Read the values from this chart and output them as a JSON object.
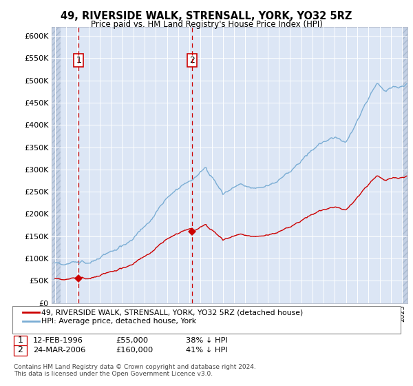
{
  "title": "49, RIVERSIDE WALK, STRENSALL, YORK, YO32 5RZ",
  "subtitle": "Price paid vs. HM Land Registry's House Price Index (HPI)",
  "ylim": [
    0,
    620000
  ],
  "xlim_start": 1993.7,
  "xlim_end": 2025.5,
  "bg_color": "#dce6f5",
  "hatch_color": "#c4d0e4",
  "grid_color": "#ffffff",
  "sale1_x": 1996.12,
  "sale1_y": 55000,
  "sale2_x": 2006.22,
  "sale2_y": 160000,
  "legend_line1": "49, RIVERSIDE WALK, STRENSALL, YORK, YO32 5RZ (detached house)",
  "legend_line2": "HPI: Average price, detached house, York",
  "footer": "Contains HM Land Registry data © Crown copyright and database right 2024.\nThis data is licensed under the Open Government Licence v3.0.",
  "sale_color": "#cc0000",
  "hpi_color": "#7aadd4",
  "vline_color": "#cc0000"
}
